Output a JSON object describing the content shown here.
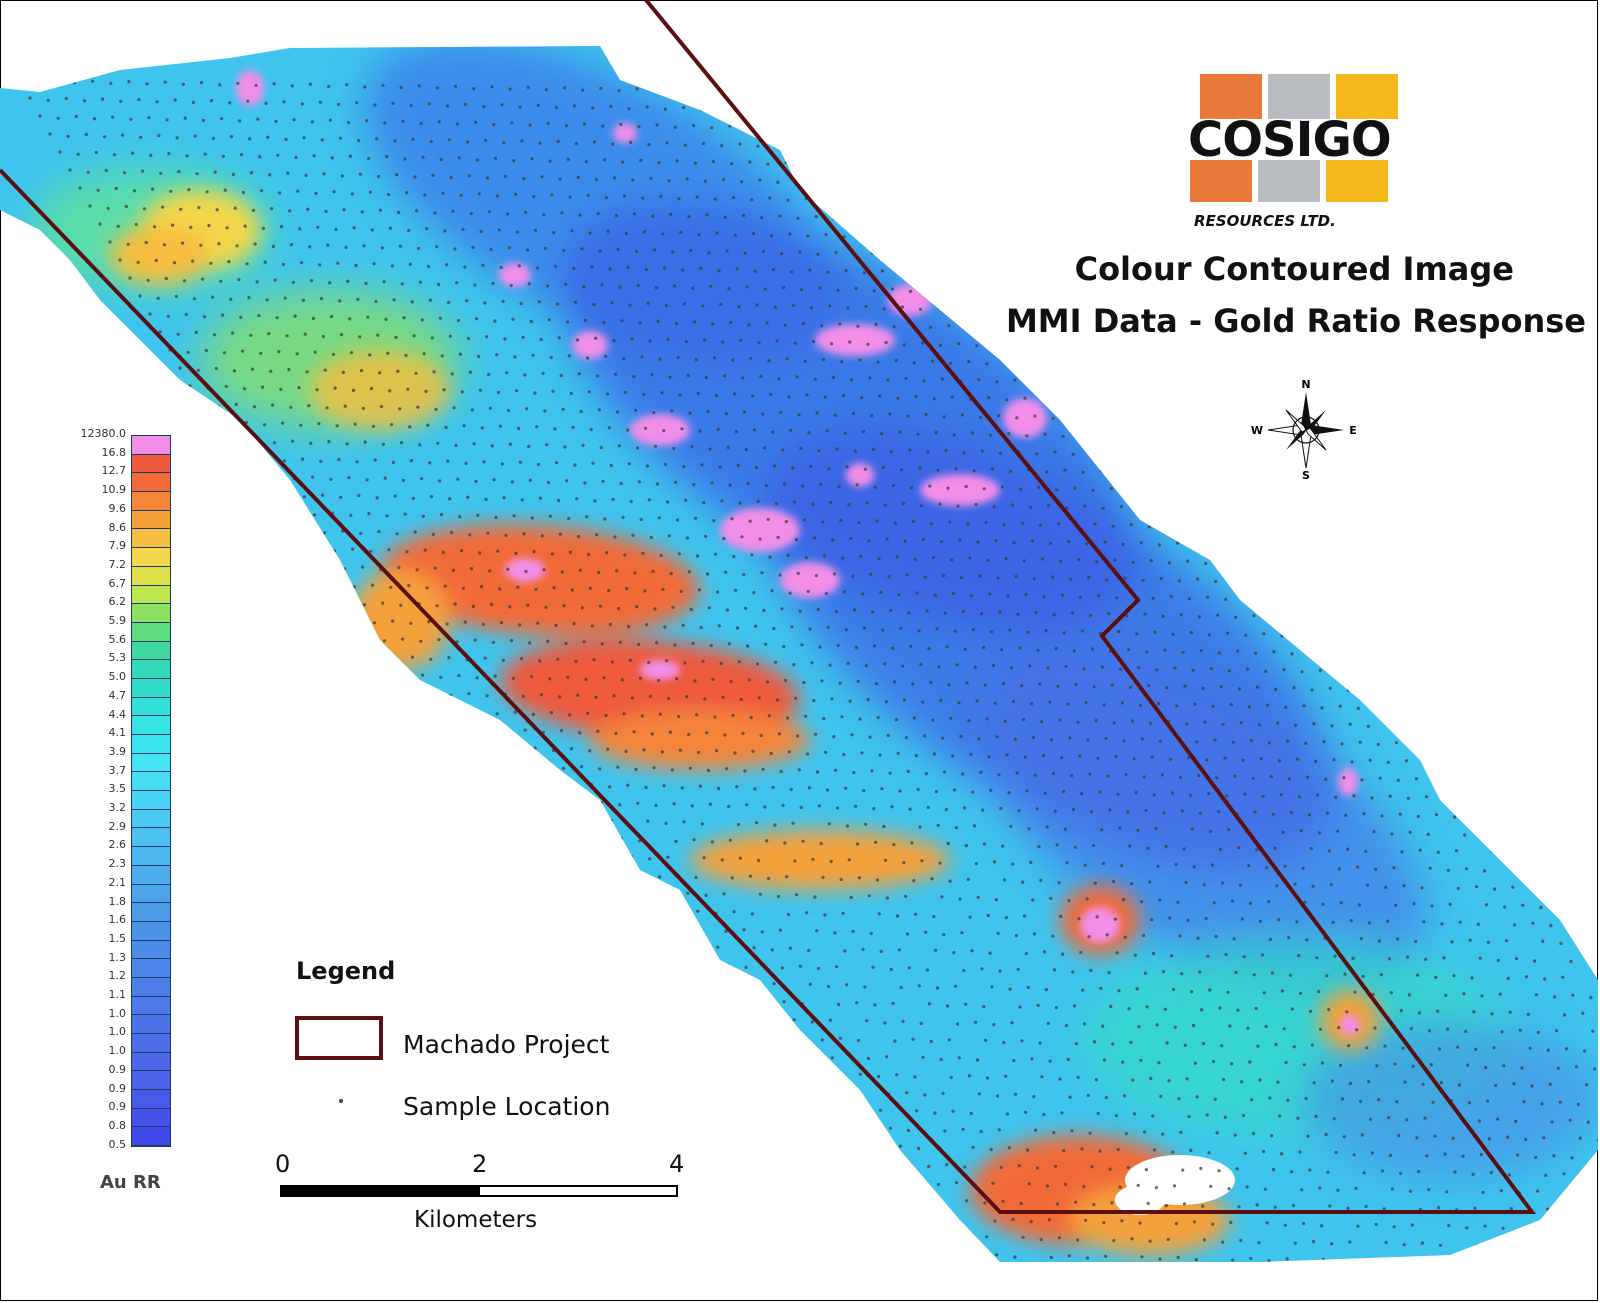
{
  "logo": {
    "name": "COSIGO",
    "subtitle": "RESOURCES LTD.",
    "colors": [
      "#e8793a",
      "#b9bcc1",
      "#f5b81c"
    ]
  },
  "title": {
    "line1": "Colour Contoured Image",
    "line2": "MMI Data - Gold Ratio Response"
  },
  "compass": {
    "n": "N",
    "s": "S",
    "e": "E",
    "w": "W"
  },
  "color_scale": {
    "title": "Au RR",
    "labels": [
      "12380.0",
      "16.8",
      "12.7",
      "10.9",
      "9.6",
      "8.6",
      "7.9",
      "7.2",
      "6.7",
      "6.2",
      "5.9",
      "5.6",
      "5.3",
      "5.0",
      "4.7",
      "4.4",
      "4.1",
      "3.9",
      "3.7",
      "3.5",
      "3.2",
      "2.9",
      "2.6",
      "2.3",
      "2.1",
      "1.8",
      "1.6",
      "1.5",
      "1.3",
      "1.2",
      "1.1",
      "1.0",
      "1.0",
      "1.0",
      "0.9",
      "0.9",
      "0.9",
      "0.8",
      "0.5"
    ],
    "colors": [
      "#f28ee8",
      "#f05a3c",
      "#f26a38",
      "#f4853a",
      "#f4a03a",
      "#f6bd40",
      "#f4d64a",
      "#e2e04a",
      "#bfe64e",
      "#8ee060",
      "#5edc80",
      "#3fd8a0",
      "#33d8b8",
      "#33dcc8",
      "#33e0d8",
      "#36e4e4",
      "#3de6ee",
      "#44e4f4",
      "#46dcf4",
      "#48d4f4",
      "#4acaf2",
      "#4cc0f0",
      "#4cb6ee",
      "#4cacec",
      "#4ca4ea",
      "#4c9cea",
      "#4c94e8",
      "#4c8ce8",
      "#4c86e8",
      "#4c80e8",
      "#4c7ae8",
      "#4c74e8",
      "#4c6ee8",
      "#4c68e8",
      "#4c62e8",
      "#4a5ae8",
      "#4652e8",
      "#4248e8"
    ]
  },
  "legend": {
    "title": "Legend",
    "project_label": "Machado Project",
    "sample_label": "Sample Location",
    "project_outline_color": "#5b0f10"
  },
  "scale_bar": {
    "ticks": [
      "0",
      "2",
      "4"
    ],
    "unit": "Kilometers"
  }
}
